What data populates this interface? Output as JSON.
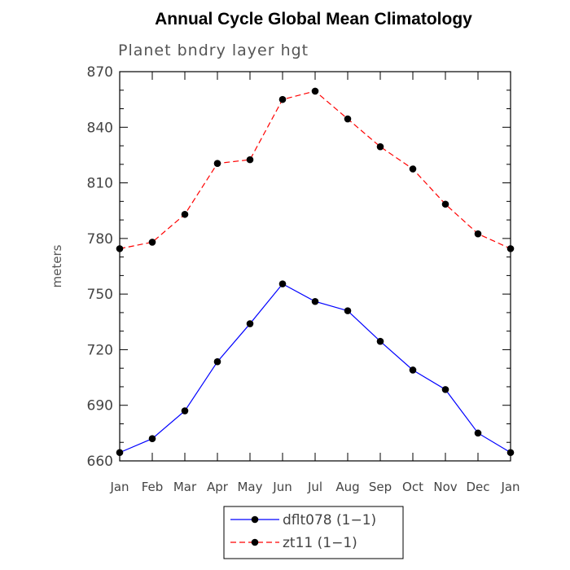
{
  "chart_data": {
    "type": "line",
    "title": "Annual Cycle Global Mean Climatology",
    "subtitle": "Planet bndry layer hgt",
    "xlabel": "",
    "ylabel": "meters",
    "categories": [
      "Jan",
      "Feb",
      "Mar",
      "Apr",
      "May",
      "Jun",
      "Jul",
      "Aug",
      "Sep",
      "Oct",
      "Nov",
      "Dec",
      "Jan"
    ],
    "ylim": [
      660,
      870
    ],
    "yticks": [
      660,
      690,
      720,
      750,
      780,
      810,
      840,
      870
    ],
    "series": [
      {
        "name": "dflt078 (1−1)",
        "color": "#0000ff",
        "dash": "solid",
        "marker": "filled-circle",
        "values": [
          664.5,
          672,
          687,
          713.5,
          734,
          755.5,
          746,
          741,
          724.5,
          709,
          698.5,
          675,
          664.5
        ]
      },
      {
        "name": "zt11 (1−1)",
        "color": "#ff0000",
        "dash": "dashed",
        "marker": "filled-circle",
        "values": [
          774.5,
          778,
          793,
          820.5,
          822.5,
          855,
          859.5,
          844.5,
          829.5,
          817.5,
          798.5,
          782.5,
          774.5
        ]
      }
    ],
    "legend_position": "bottom-center",
    "grid": false
  }
}
